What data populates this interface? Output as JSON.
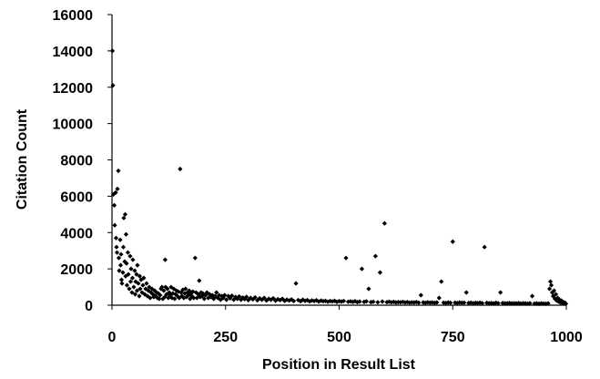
{
  "chart_data": {
    "type": "scatter",
    "title": "",
    "xlabel": "Position in Result List",
    "ylabel": "Citation Count",
    "xlim": [
      0,
      1000
    ],
    "ylim": [
      0,
      16000
    ],
    "x_ticks": [
      "0",
      "250",
      "500",
      "750",
      "1000"
    ],
    "y_ticks": [
      "0",
      "2000",
      "4000",
      "6000",
      "8000",
      "10000",
      "12000",
      "14000",
      "16000"
    ],
    "grid": false,
    "legend": "none",
    "marker": "diamond",
    "marker_color": "#000000",
    "series": [
      {
        "points": [
          [
            1,
            14000
          ],
          [
            2,
            12100
          ],
          [
            3,
            6100
          ],
          [
            5,
            5500
          ],
          [
            6,
            4400
          ],
          [
            8,
            6200
          ],
          [
            9,
            3700
          ],
          [
            10,
            3200
          ],
          [
            11,
            2900
          ],
          [
            12,
            6400
          ],
          [
            14,
            7400
          ],
          [
            15,
            2600
          ],
          [
            16,
            1900
          ],
          [
            18,
            3600
          ],
          [
            19,
            2200
          ],
          [
            20,
            2800
          ],
          [
            21,
            1400
          ],
          [
            22,
            1200
          ],
          [
            24,
            1800
          ],
          [
            25,
            3200
          ],
          [
            26,
            4800
          ],
          [
            28,
            2400
          ],
          [
            29,
            5000
          ],
          [
            30,
            1600
          ],
          [
            31,
            3900
          ],
          [
            32,
            2300
          ],
          [
            33,
            1100
          ],
          [
            35,
            2900
          ],
          [
            36,
            1700
          ],
          [
            38,
            900
          ],
          [
            40,
            2700
          ],
          [
            41,
            1300
          ],
          [
            42,
            2000
          ],
          [
            44,
            700
          ],
          [
            45,
            1500
          ],
          [
            46,
            2500
          ],
          [
            48,
            1000
          ],
          [
            50,
            1900
          ],
          [
            51,
            600
          ],
          [
            52,
            1300
          ],
          [
            54,
            1700
          ],
          [
            55,
            800
          ],
          [
            56,
            2200
          ],
          [
            58,
            1200
          ],
          [
            60,
            500
          ],
          [
            61,
            1600
          ],
          [
            62,
            900
          ],
          [
            64,
            1400
          ],
          [
            66,
            700
          ],
          [
            68,
            1100
          ],
          [
            70,
            1500
          ],
          [
            72,
            600
          ],
          [
            74,
            900
          ],
          [
            76,
            1200
          ],
          [
            78,
            500
          ],
          [
            80,
            800
          ],
          [
            82,
            1000
          ],
          [
            84,
            400
          ],
          [
            86,
            700
          ],
          [
            88,
            900
          ],
          [
            90,
            600
          ],
          [
            92,
            450
          ],
          [
            94,
            800
          ],
          [
            96,
            500
          ],
          [
            98,
            700
          ],
          [
            100,
            400
          ],
          [
            102,
            650
          ],
          [
            104,
            350
          ],
          [
            106,
            550
          ],
          [
            108,
            900
          ],
          [
            110,
            1000
          ],
          [
            112,
            350
          ],
          [
            114,
            800
          ],
          [
            116,
            450
          ],
          [
            117,
            2500
          ],
          [
            118,
            1000
          ],
          [
            120,
            600
          ],
          [
            122,
            900
          ],
          [
            124,
            400
          ],
          [
            126,
            700
          ],
          [
            128,
            550
          ],
          [
            130,
            1000
          ],
          [
            132,
            400
          ],
          [
            134,
            650
          ],
          [
            136,
            900
          ],
          [
            138,
            350
          ],
          [
            140,
            600
          ],
          [
            142,
            800
          ],
          [
            144,
            500
          ],
          [
            146,
            750
          ],
          [
            148,
            400
          ],
          [
            150,
            7500
          ],
          [
            152,
            700
          ],
          [
            154,
            500
          ],
          [
            156,
            850
          ],
          [
            158,
            400
          ],
          [
            160,
            650
          ],
          [
            162,
            900
          ],
          [
            164,
            450
          ],
          [
            166,
            700
          ],
          [
            168,
            550
          ],
          [
            170,
            800
          ],
          [
            172,
            350
          ],
          [
            174,
            650
          ],
          [
            176,
            500
          ],
          [
            178,
            750
          ],
          [
            180,
            400
          ],
          [
            183,
            2600
          ],
          [
            185,
            700
          ],
          [
            187,
            400
          ],
          [
            190,
            600
          ],
          [
            192,
            1350
          ],
          [
            194,
            450
          ],
          [
            196,
            700
          ],
          [
            198,
            500
          ],
          [
            200,
            650
          ],
          [
            203,
            350
          ],
          [
            206,
            550
          ],
          [
            209,
            700
          ],
          [
            212,
            400
          ],
          [
            215,
            600
          ],
          [
            218,
            450
          ],
          [
            221,
            550
          ],
          [
            224,
            350
          ],
          [
            227,
            500
          ],
          [
            230,
            700
          ],
          [
            233,
            400
          ],
          [
            236,
            550
          ],
          [
            239,
            300
          ],
          [
            242,
            500
          ],
          [
            245,
            400
          ],
          [
            248,
            550
          ],
          [
            252,
            300
          ],
          [
            256,
            500
          ],
          [
            260,
            380
          ],
          [
            264,
            520
          ],
          [
            268,
            300
          ],
          [
            272,
            450
          ],
          [
            276,
            350
          ],
          [
            280,
            480
          ],
          [
            284,
            300
          ],
          [
            288,
            420
          ],
          [
            292,
            330
          ],
          [
            296,
            460
          ],
          [
            300,
            280
          ],
          [
            305,
            400
          ],
          [
            310,
            320
          ],
          [
            315,
            430
          ],
          [
            320,
            270
          ],
          [
            325,
            380
          ],
          [
            330,
            300
          ],
          [
            335,
            400
          ],
          [
            340,
            260
          ],
          [
            345,
            350
          ],
          [
            350,
            300
          ],
          [
            355,
            380
          ],
          [
            360,
            250
          ],
          [
            365,
            330
          ],
          [
            370,
            280
          ],
          [
            375,
            350
          ],
          [
            380,
            240
          ],
          [
            385,
            300
          ],
          [
            390,
            260
          ],
          [
            395,
            320
          ],
          [
            400,
            230
          ],
          [
            405,
            1200
          ],
          [
            410,
            280
          ],
          [
            415,
            220
          ],
          [
            420,
            300
          ],
          [
            425,
            240
          ],
          [
            430,
            280
          ],
          [
            435,
            210
          ],
          [
            440,
            260
          ],
          [
            445,
            230
          ],
          [
            450,
            270
          ],
          [
            455,
            200
          ],
          [
            460,
            250
          ],
          [
            465,
            220
          ],
          [
            470,
            240
          ],
          [
            475,
            190
          ],
          [
            480,
            230
          ],
          [
            485,
            210
          ],
          [
            490,
            240
          ],
          [
            495,
            180
          ],
          [
            500,
            220
          ],
          [
            505,
            200
          ],
          [
            510,
            230
          ],
          [
            515,
            2600
          ],
          [
            520,
            190
          ],
          [
            525,
            210
          ],
          [
            530,
            180
          ],
          [
            535,
            220
          ],
          [
            540,
            170
          ],
          [
            545,
            200
          ],
          [
            550,
            2000
          ],
          [
            555,
            180
          ],
          [
            560,
            210
          ],
          [
            565,
            900
          ],
          [
            570,
            170
          ],
          [
            575,
            190
          ],
          [
            580,
            2700
          ],
          [
            585,
            160
          ],
          [
            590,
            1800
          ],
          [
            595,
            200
          ],
          [
            600,
            4500
          ],
          [
            605,
            170
          ],
          [
            610,
            190
          ],
          [
            615,
            160
          ],
          [
            620,
            180
          ],
          [
            625,
            150
          ],
          [
            630,
            170
          ],
          [
            635,
            160
          ],
          [
            640,
            180
          ],
          [
            645,
            150
          ],
          [
            650,
            170
          ],
          [
            655,
            140
          ],
          [
            660,
            160
          ],
          [
            665,
            150
          ],
          [
            670,
            170
          ],
          [
            675,
            140
          ],
          [
            680,
            550
          ],
          [
            685,
            150
          ],
          [
            690,
            130
          ],
          [
            695,
            160
          ],
          [
            700,
            140
          ],
          [
            705,
            150
          ],
          [
            710,
            130
          ],
          [
            715,
            150
          ],
          [
            720,
            400
          ],
          [
            725,
            1300
          ],
          [
            730,
            140
          ],
          [
            735,
            120
          ],
          [
            740,
            150
          ],
          [
            745,
            130
          ],
          [
            750,
            3500
          ],
          [
            755,
            140
          ],
          [
            760,
            120
          ],
          [
            765,
            150
          ],
          [
            770,
            130
          ],
          [
            775,
            140
          ],
          [
            780,
            700
          ],
          [
            785,
            120
          ],
          [
            790,
            140
          ],
          [
            795,
            110
          ],
          [
            800,
            130
          ],
          [
            805,
            120
          ],
          [
            810,
            140
          ],
          [
            815,
            110
          ],
          [
            820,
            3200
          ],
          [
            825,
            130
          ],
          [
            830,
            110
          ],
          [
            835,
            120
          ],
          [
            840,
            100
          ],
          [
            845,
            130
          ],
          [
            850,
            110
          ],
          [
            855,
            700
          ],
          [
            860,
            120
          ],
          [
            865,
            100
          ],
          [
            870,
            110
          ],
          [
            875,
            120
          ],
          [
            880,
            100
          ],
          [
            885,
            110
          ],
          [
            890,
            100
          ],
          [
            895,
            120
          ],
          [
            900,
            90
          ],
          [
            905,
            110
          ],
          [
            910,
            100
          ],
          [
            915,
            90
          ],
          [
            920,
            110
          ],
          [
            925,
            500
          ],
          [
            930,
            90
          ],
          [
            935,
            100
          ],
          [
            940,
            80
          ],
          [
            945,
            100
          ],
          [
            950,
            90
          ],
          [
            955,
            80
          ],
          [
            960,
            100
          ],
          [
            963,
            900
          ],
          [
            965,
            1300
          ],
          [
            967,
            1100
          ],
          [
            969,
            700
          ],
          [
            971,
            500
          ],
          [
            973,
            800
          ],
          [
            975,
            350
          ],
          [
            977,
            600
          ],
          [
            979,
            250
          ],
          [
            981,
            400
          ],
          [
            983,
            200
          ],
          [
            985,
            300
          ],
          [
            987,
            150
          ],
          [
            989,
            250
          ],
          [
            991,
            120
          ],
          [
            993,
            180
          ],
          [
            995,
            100
          ],
          [
            997,
            140
          ],
          [
            999,
            80
          ]
        ]
      }
    ]
  }
}
